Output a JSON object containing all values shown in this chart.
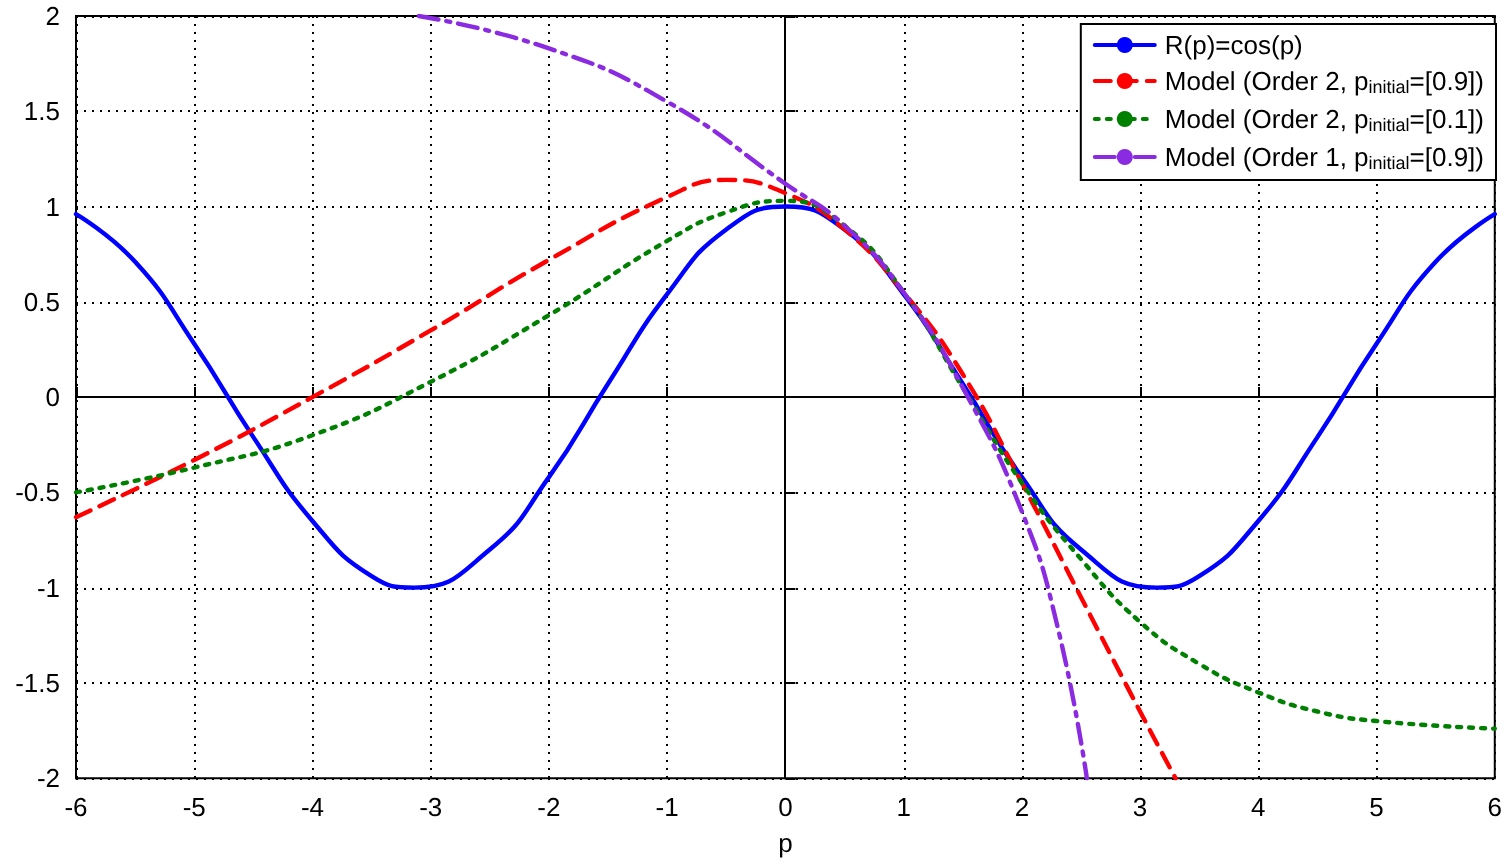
{
  "chart_data": {
    "type": "line",
    "xlabel": "p",
    "xlim": [
      -6,
      6
    ],
    "xticks": [
      -6,
      -5,
      -4,
      -3,
      -2,
      -1,
      0,
      1,
      2,
      3,
      4,
      5,
      6
    ],
    "ylim": [
      -2,
      2
    ],
    "yticks": [
      -2,
      -1.5,
      -1,
      -0.5,
      0,
      0.5,
      1,
      1.5,
      2
    ],
    "grid": true,
    "legend": "top right",
    "marker": "none",
    "series": [
      {
        "name": "R(p)=cos(p)",
        "color": "#0000ff",
        "line_style": "solid",
        "x": [
          -6,
          -5.5,
          -5,
          -4.5,
          -4,
          -3.5,
          -3.14,
          -2.5,
          -2,
          -1.5,
          -1,
          -0.5,
          0,
          0.5,
          1,
          1.5,
          2,
          2.5,
          3.14,
          3.5,
          4,
          4.5,
          5,
          5.5,
          6
        ],
        "values": [
          0.96,
          0.71,
          0.28,
          -0.21,
          -0.65,
          -0.94,
          -1,
          -0.8,
          -0.42,
          0.07,
          0.54,
          0.88,
          1,
          0.88,
          0.54,
          0.07,
          -0.42,
          -0.8,
          -1,
          -0.94,
          -0.65,
          -0.21,
          0.28,
          0.71,
          0.96
        ]
      },
      {
        "name": "Model (Order 2, p$_{initial}$=[0.9])",
        "color": "#ff0000",
        "line_style": "dashed",
        "x": [
          -6,
          -5,
          -4,
          -3,
          -2,
          -1,
          -0.5,
          0,
          0.5,
          1,
          1.5,
          2,
          2.5,
          3,
          3.3
        ],
        "values": [
          -0.63,
          -0.33,
          0,
          0.35,
          0.72,
          1.05,
          1.14,
          1.07,
          0.88,
          0.55,
          0.12,
          -0.45,
          -1.05,
          -1.65,
          -2
        ]
      },
      {
        "name": "Model (Order 2, p$_{initial}$=[0.1])",
        "color": "#008000",
        "line_style": "dotted",
        "x": [
          -6,
          -5,
          -4,
          -3,
          -2,
          -1,
          -0.5,
          0,
          0.5,
          1,
          1.5,
          2,
          2.5,
          3,
          3.5,
          4,
          4.5,
          5,
          6
        ],
        "values": [
          -0.5,
          -0.37,
          -0.2,
          0.08,
          0.43,
          0.82,
          0.97,
          1.03,
          0.9,
          0.55,
          0.05,
          -0.45,
          -0.85,
          -1.18,
          -1.4,
          -1.55,
          -1.65,
          -1.7,
          -1.74
        ]
      },
      {
        "name": "Model (Order 1, p$_{initial}$=[0.9])",
        "color": "#8a2be2",
        "line_style": "dashdot",
        "x": [
          -3.1,
          -2,
          -1,
          0,
          0.5,
          1,
          1.5,
          2,
          2.3,
          2.55
        ],
        "values": [
          2,
          1.83,
          1.55,
          1.12,
          0.9,
          0.55,
          0.05,
          -0.6,
          -1.2,
          -2
        ]
      }
    ]
  }
}
